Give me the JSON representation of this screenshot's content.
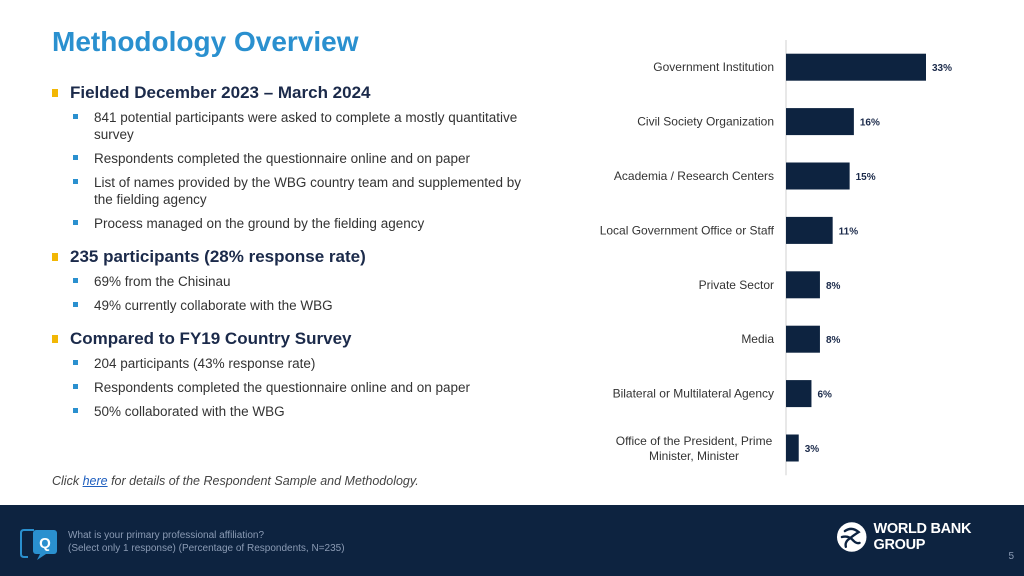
{
  "title": "Methodology Overview",
  "sections": [
    {
      "heading": "Fielded December 2023 – March 2024",
      "items": [
        "841 potential participants were asked to complete a mostly quantitative survey",
        "Respondents completed the questionnaire online and on paper",
        "List of names provided by the WBG country team and supplemented by the fielding agency",
        "Process managed on the ground by the fielding agency"
      ]
    },
    {
      "heading": "235 participants (28% response rate)",
      "items": [
        "69% from the Chisinau",
        "49% currently collaborate with the WBG"
      ]
    },
    {
      "heading": "Compared to FY19 Country Survey",
      "items": [
        "204 participants (43% response rate)",
        "Respondents completed the questionnaire online and on paper",
        "50% collaborated with the WBG"
      ]
    }
  ],
  "note": {
    "prefix": "Click ",
    "link": "here",
    "suffix": " for details of the Respondent Sample and Methodology."
  },
  "chart_data": {
    "type": "bar",
    "orientation": "horizontal",
    "categories": [
      "Government Institution",
      "Civil Society Organization",
      "Academia / Research Centers",
      "Local Government Office or Staff",
      "Private Sector",
      "Media",
      "Bilateral or Multilateral Agency",
      "Office of the President, Prime Minister, Minister"
    ],
    "values": [
      33,
      16,
      15,
      11,
      8,
      8,
      6,
      3
    ],
    "value_labels": [
      "33%",
      "16%",
      "15%",
      "11%",
      "8%",
      "8%",
      "6%",
      "3%"
    ],
    "bar_color": "#0d2340",
    "grid": false
  },
  "footer": {
    "question": "What is your primary professional affiliation?",
    "instruction": "(Select only 1 response) (Percentage of Respondents, N=235)",
    "icon_letter": "Q",
    "logo_text": "WORLD BANK GROUP",
    "page_number": "5"
  },
  "colors": {
    "title": "#2a90cf",
    "section_bullet": "#f2b705",
    "sub_bullet": "#2a90cf",
    "footer_bg": "#0d2340"
  }
}
